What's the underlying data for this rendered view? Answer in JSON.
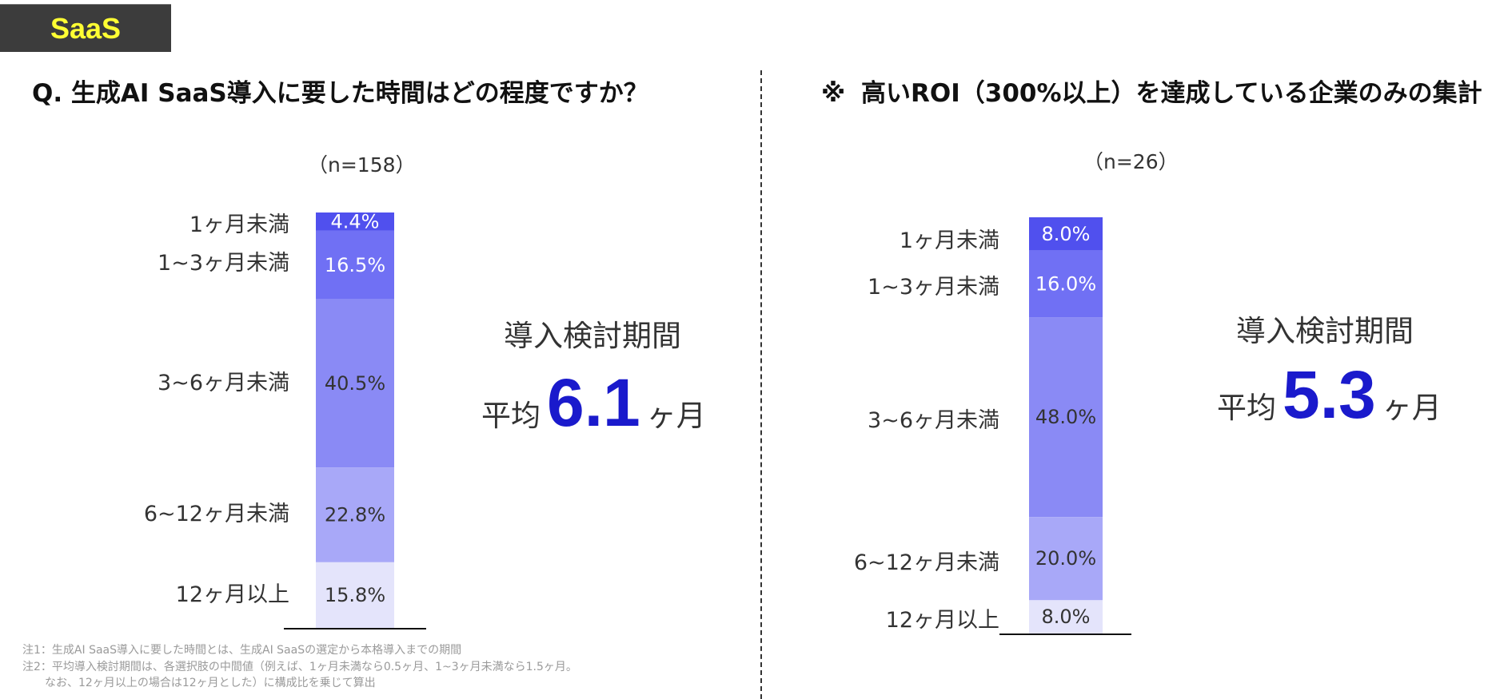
{
  "tag": "SaaS",
  "left": {
    "question": "Q. 生成AI SaaS導入に要した時間はどの程度ですか？",
    "n": "（n=158）",
    "avg_label": "導入検討期間",
    "avg_prefix": "平均",
    "avg_value": "6.1",
    "avg_unit": "ヶ月"
  },
  "right": {
    "mark": "※",
    "title": "高いROI（300%以上）を達成している企業のみの集計",
    "n": "（n=26）",
    "avg_label": "導入検討期間",
    "avg_prefix": "平均",
    "avg_value": "5.3",
    "avg_unit": "ヶ月"
  },
  "notes": [
    "注1：生成AI SaaS導入に要した時間とは、生成AI SaaSの選定から本格導入までの期間",
    "注2：平均導入検討期間は、各選択肢の中間値（例えば、1ヶ月未満なら0.5ヶ月、1~3ヶ月未満なら1.5ヶ月。",
    "　　なお、12ヶ月以上の場合は12ヶ月とした）に構成比を乗じて算出"
  ],
  "chart_data": [
    {
      "type": "bar",
      "stacked": true,
      "n": "（n=158）",
      "categories": [
        "1ヶ月未満",
        "1~3ヶ月未満",
        "3~6ヶ月未満",
        "6~12ヶ月未満",
        "12ヶ月以上"
      ],
      "values": [
        4.4,
        16.5,
        40.5,
        22.8,
        15.8
      ],
      "labels": [
        "4.4%",
        "16.5%",
        "40.5%",
        "22.8%",
        "15.8%"
      ],
      "colors": [
        "#5050ee",
        "#7070f4",
        "#8a8af5",
        "#a8a8f8",
        "#e4e4fb"
      ],
      "label_colors": [
        "#ffffff",
        "#ffffff",
        "#333333",
        "#333333",
        "#333333"
      ]
    },
    {
      "type": "bar",
      "stacked": true,
      "n": "（n=26）",
      "categories": [
        "1ヶ月未満",
        "1~3ヶ月未満",
        "3~6ヶ月未満",
        "6~12ヶ月未満",
        "12ヶ月以上"
      ],
      "values": [
        8.0,
        16.0,
        48.0,
        20.0,
        8.0
      ],
      "labels": [
        "8.0%",
        "16.0%",
        "48.0%",
        "20.0%",
        "8.0%"
      ],
      "colors": [
        "#5050ee",
        "#7070f4",
        "#8a8af5",
        "#a8a8f8",
        "#e4e4fb"
      ],
      "label_colors": [
        "#ffffff",
        "#ffffff",
        "#333333",
        "#333333",
        "#333333"
      ]
    }
  ]
}
